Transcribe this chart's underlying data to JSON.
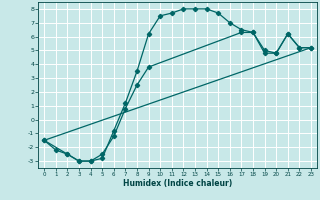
{
  "xlabel": "Humidex (Indice chaleur)",
  "background_color": "#c8e8e8",
  "grid_color": "#ffffff",
  "line_color": "#006666",
  "xlim": [
    -0.5,
    23.5
  ],
  "ylim": [
    -3.5,
    8.5
  ],
  "xticks": [
    0,
    1,
    2,
    3,
    4,
    5,
    6,
    7,
    8,
    9,
    10,
    11,
    12,
    13,
    14,
    15,
    16,
    17,
    18,
    19,
    20,
    21,
    22,
    23
  ],
  "yticks": [
    -3,
    -2,
    -1,
    0,
    1,
    2,
    3,
    4,
    5,
    6,
    7,
    8
  ],
  "curve1_x": [
    0,
    1,
    2,
    3,
    4,
    5,
    6,
    7,
    8,
    9,
    10,
    11,
    12,
    13,
    14,
    15,
    16,
    17,
    18,
    19,
    20,
    21,
    22,
    23
  ],
  "curve1_y": [
    -1.5,
    -2.2,
    -2.5,
    -3.0,
    -3.0,
    -2.8,
    -0.8,
    1.2,
    3.5,
    6.2,
    7.5,
    7.7,
    8.0,
    8.0,
    8.0,
    7.7,
    7.0,
    6.5,
    6.3,
    5.0,
    4.8,
    6.2,
    5.2,
    5.2
  ],
  "curve2_x": [
    0,
    2,
    3,
    4,
    5,
    6,
    7,
    8,
    9,
    17,
    18,
    19,
    20,
    21,
    22,
    23
  ],
  "curve2_y": [
    -1.5,
    -2.5,
    -3.0,
    -3.0,
    -2.5,
    -1.2,
    0.8,
    2.5,
    3.8,
    6.3,
    6.3,
    4.8,
    4.8,
    6.2,
    5.2,
    5.2
  ],
  "trend_x": [
    0,
    23
  ],
  "trend_y": [
    -1.5,
    5.2
  ]
}
